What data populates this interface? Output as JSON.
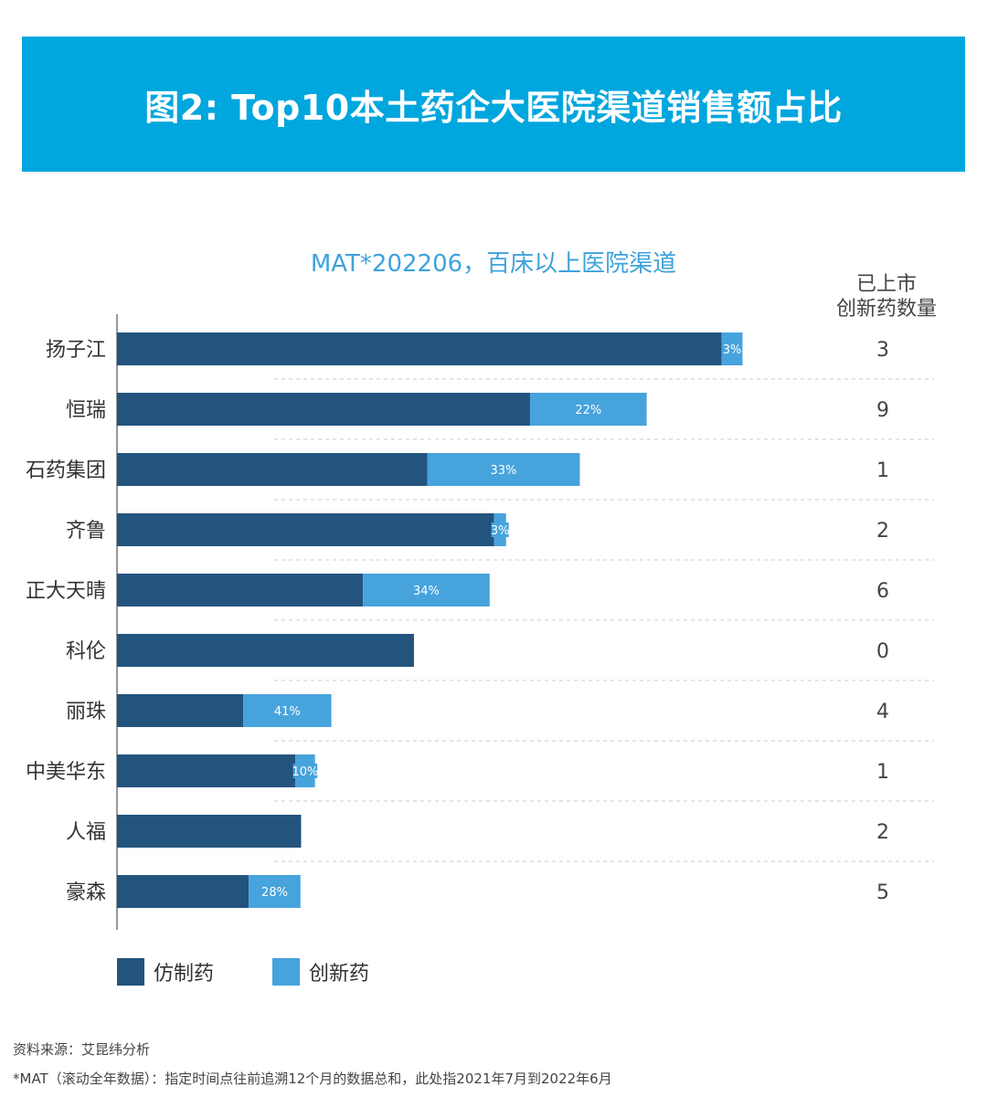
{
  "title": "图2: Top10本土药企大医院渠道销售额占比",
  "subtitle": "MAT*202206，百床以上医院渠道",
  "count_header_line1": "已上市",
  "count_header_line2": "创新药数量",
  "colors": {
    "banner": "#00a6de",
    "generic": "#23547e",
    "innovative": "#47a3dc",
    "subtitle": "#3ea2dc"
  },
  "legend": {
    "generic_label": "仿制药",
    "innovative_label": "创新药"
  },
  "footnotes": {
    "source": "资料来源：艾昆纬分析",
    "mat_note": "*MAT（滚动全年数据）：指定时间点往前追溯12个月的数据总和，此处指2021年7月到2022年6月"
  },
  "chart_data": {
    "type": "bar",
    "orientation": "horizontal",
    "stacked": true,
    "axis_max": 1000,
    "gridlines": "dashed-between-rows",
    "categories": [
      "扬子江",
      "恒瑞",
      "石药集团",
      "齐鲁",
      "正大天晴",
      "科伦",
      "丽珠",
      "中美华东",
      "人福",
      "豪森"
    ],
    "series": [
      {
        "name": "仿制药",
        "values": [
          959,
          655,
          492,
          598,
          390,
          471,
          200,
          283,
          292,
          209
        ]
      },
      {
        "name": "创新药",
        "values": [
          33,
          185,
          242,
          19,
          201,
          0,
          140,
          31,
          0,
          82
        ]
      }
    ],
    "innovative_share_labels": [
      "3%",
      "22%",
      "33%",
      "3%",
      "34%",
      "",
      "41%",
      "10%",
      "",
      "28%"
    ],
    "launched_innovative_drug_count": [
      3,
      9,
      1,
      2,
      6,
      0,
      4,
      1,
      2,
      5
    ]
  }
}
